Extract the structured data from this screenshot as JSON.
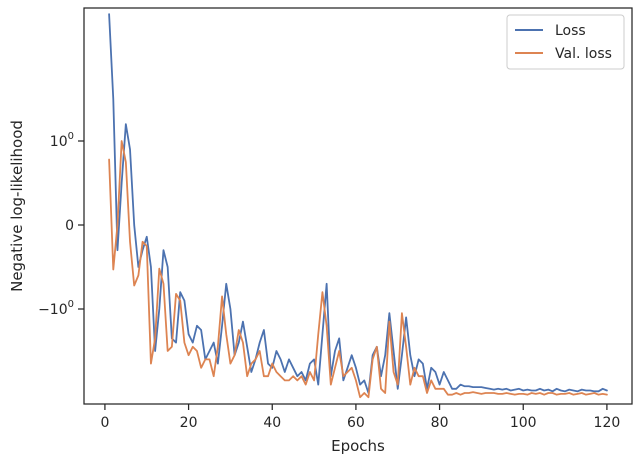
{
  "chart_data": {
    "type": "line",
    "title": "",
    "xlabel": "Epochs",
    "ylabel": "Negative log-likelihood",
    "xlim": [
      -5,
      126
    ],
    "yscale": "symlog",
    "x_ticks": [
      0,
      20,
      40,
      60,
      80,
      100,
      120
    ],
    "x_tick_labels": [
      "0",
      "20",
      "40",
      "60",
      "80",
      "100",
      "120"
    ],
    "y_ticks": [
      1,
      0,
      -1
    ],
    "y_tick_labels": [
      {
        "base": "10",
        "exp": "0"
      },
      {
        "base": "0",
        "exp": ""
      },
      {
        "base": "−10",
        "exp": "0"
      }
    ],
    "grid": false,
    "legend": {
      "position": "top-right"
    },
    "x": [
      1,
      2,
      3,
      4,
      5,
      6,
      7,
      8,
      9,
      10,
      11,
      12,
      13,
      14,
      15,
      16,
      17,
      18,
      19,
      20,
      21,
      22,
      23,
      24,
      25,
      26,
      27,
      28,
      29,
      30,
      31,
      32,
      33,
      34,
      35,
      36,
      37,
      38,
      39,
      40,
      41,
      42,
      43,
      44,
      45,
      46,
      47,
      48,
      49,
      50,
      51,
      52,
      53,
      54,
      55,
      56,
      57,
      58,
      59,
      60,
      61,
      62,
      63,
      64,
      65,
      66,
      67,
      68,
      69,
      70,
      71,
      72,
      73,
      74,
      75,
      76,
      77,
      78,
      79,
      80,
      81,
      82,
      83,
      84,
      85,
      86,
      87,
      88,
      89,
      90,
      91,
      92,
      93,
      94,
      95,
      96,
      97,
      98,
      99,
      100,
      101,
      102,
      103,
      104,
      105,
      106,
      107,
      108,
      109,
      110,
      111,
      112,
      113,
      114,
      115,
      116,
      117,
      118,
      119,
      120
    ],
    "series": [
      {
        "name": "Loss",
        "color": "#4c72b0",
        "values": [
          2.51,
          1.5,
          -0.3,
          0.5,
          1.2,
          0.9,
          0.0,
          -0.5,
          -0.3,
          -0.14,
          -0.5,
          -1.5,
          -1.0,
          -0.3,
          -0.5,
          -1.35,
          -1.4,
          -0.8,
          -0.9,
          -1.3,
          -1.4,
          -1.2,
          -1.25,
          -1.6,
          -1.5,
          -1.4,
          -1.65,
          -1.2,
          -0.7,
          -1.0,
          -1.55,
          -1.4,
          -1.15,
          -1.45,
          -1.75,
          -1.6,
          -1.4,
          -1.25,
          -1.65,
          -1.7,
          -1.5,
          -1.6,
          -1.75,
          -1.6,
          -1.7,
          -1.8,
          -1.75,
          -1.85,
          -1.65,
          -1.6,
          -1.9,
          -1.3,
          -0.7,
          -1.8,
          -1.5,
          -1.35,
          -1.85,
          -1.7,
          -1.55,
          -1.7,
          -1.9,
          -1.85,
          -2.0,
          -1.55,
          -1.45,
          -1.8,
          -1.55,
          -1.05,
          -1.5,
          -1.95,
          -1.55,
          -1.1,
          -1.55,
          -1.8,
          -1.6,
          -1.65,
          -1.95,
          -1.7,
          -1.75,
          -1.9,
          -1.75,
          -1.85,
          -1.95,
          -1.95,
          -1.9,
          -1.92,
          -1.92,
          -1.93,
          -1.93,
          -1.93,
          -1.94,
          -1.95,
          -1.96,
          -1.95,
          -1.96,
          -1.95,
          -1.97,
          -1.96,
          -1.95,
          -1.97,
          -1.96,
          -1.97,
          -1.97,
          -1.95,
          -1.97,
          -1.96,
          -1.98,
          -1.95,
          -1.97,
          -1.98,
          -1.96,
          -1.97,
          -1.98,
          -1.96,
          -1.97,
          -1.97,
          -1.98,
          -1.98,
          -1.95,
          -1.97
        ]
      },
      {
        "name": "Val. loss",
        "color": "#dd8452",
        "values": [
          0.78,
          -0.53,
          0.0,
          1.0,
          0.75,
          -0.2,
          -0.72,
          -0.6,
          -0.2,
          -0.25,
          -1.65,
          -1.35,
          -0.52,
          -0.7,
          -1.5,
          -1.45,
          -0.82,
          -0.9,
          -1.4,
          -1.55,
          -1.45,
          -1.5,
          -1.7,
          -1.6,
          -1.6,
          -1.8,
          -1.45,
          -0.85,
          -1.3,
          -1.65,
          -1.55,
          -1.25,
          -1.4,
          -1.8,
          -1.65,
          -1.6,
          -1.5,
          -1.8,
          -1.8,
          -1.65,
          -1.75,
          -1.8,
          -1.85,
          -1.85,
          -1.8,
          -1.85,
          -1.8,
          -1.9,
          -1.75,
          -1.85,
          -1.3,
          -0.8,
          -1.2,
          -1.9,
          -1.7,
          -1.5,
          -1.8,
          -1.75,
          -1.7,
          -1.85,
          -2.05,
          -2.0,
          -2.05,
          -1.6,
          -1.45,
          -1.95,
          -2.0,
          -1.15,
          -1.75,
          -1.9,
          -1.05,
          -1.45,
          -1.9,
          -1.7,
          -1.8,
          -1.8,
          -2.0,
          -1.85,
          -1.95,
          -1.95,
          -1.95,
          -2.02,
          -2.02,
          -2.0,
          -2.02,
          -2.0,
          -2.0,
          -1.99,
          -2.0,
          -2.01,
          -2.0,
          -2.0,
          -2.0,
          -2.01,
          -2.01,
          -2.0,
          -2.01,
          -2.02,
          -2.01,
          -2.01,
          -2.02,
          -2.0,
          -2.01,
          -2.0,
          -2.02,
          -2.0,
          -2.0,
          -2.02,
          -2.01,
          -2.01,
          -2.0,
          -2.02,
          -2.01,
          -2.0,
          -2.02,
          -2.01,
          -2.0,
          -2.02,
          -2.01,
          -2.02
        ]
      }
    ]
  }
}
